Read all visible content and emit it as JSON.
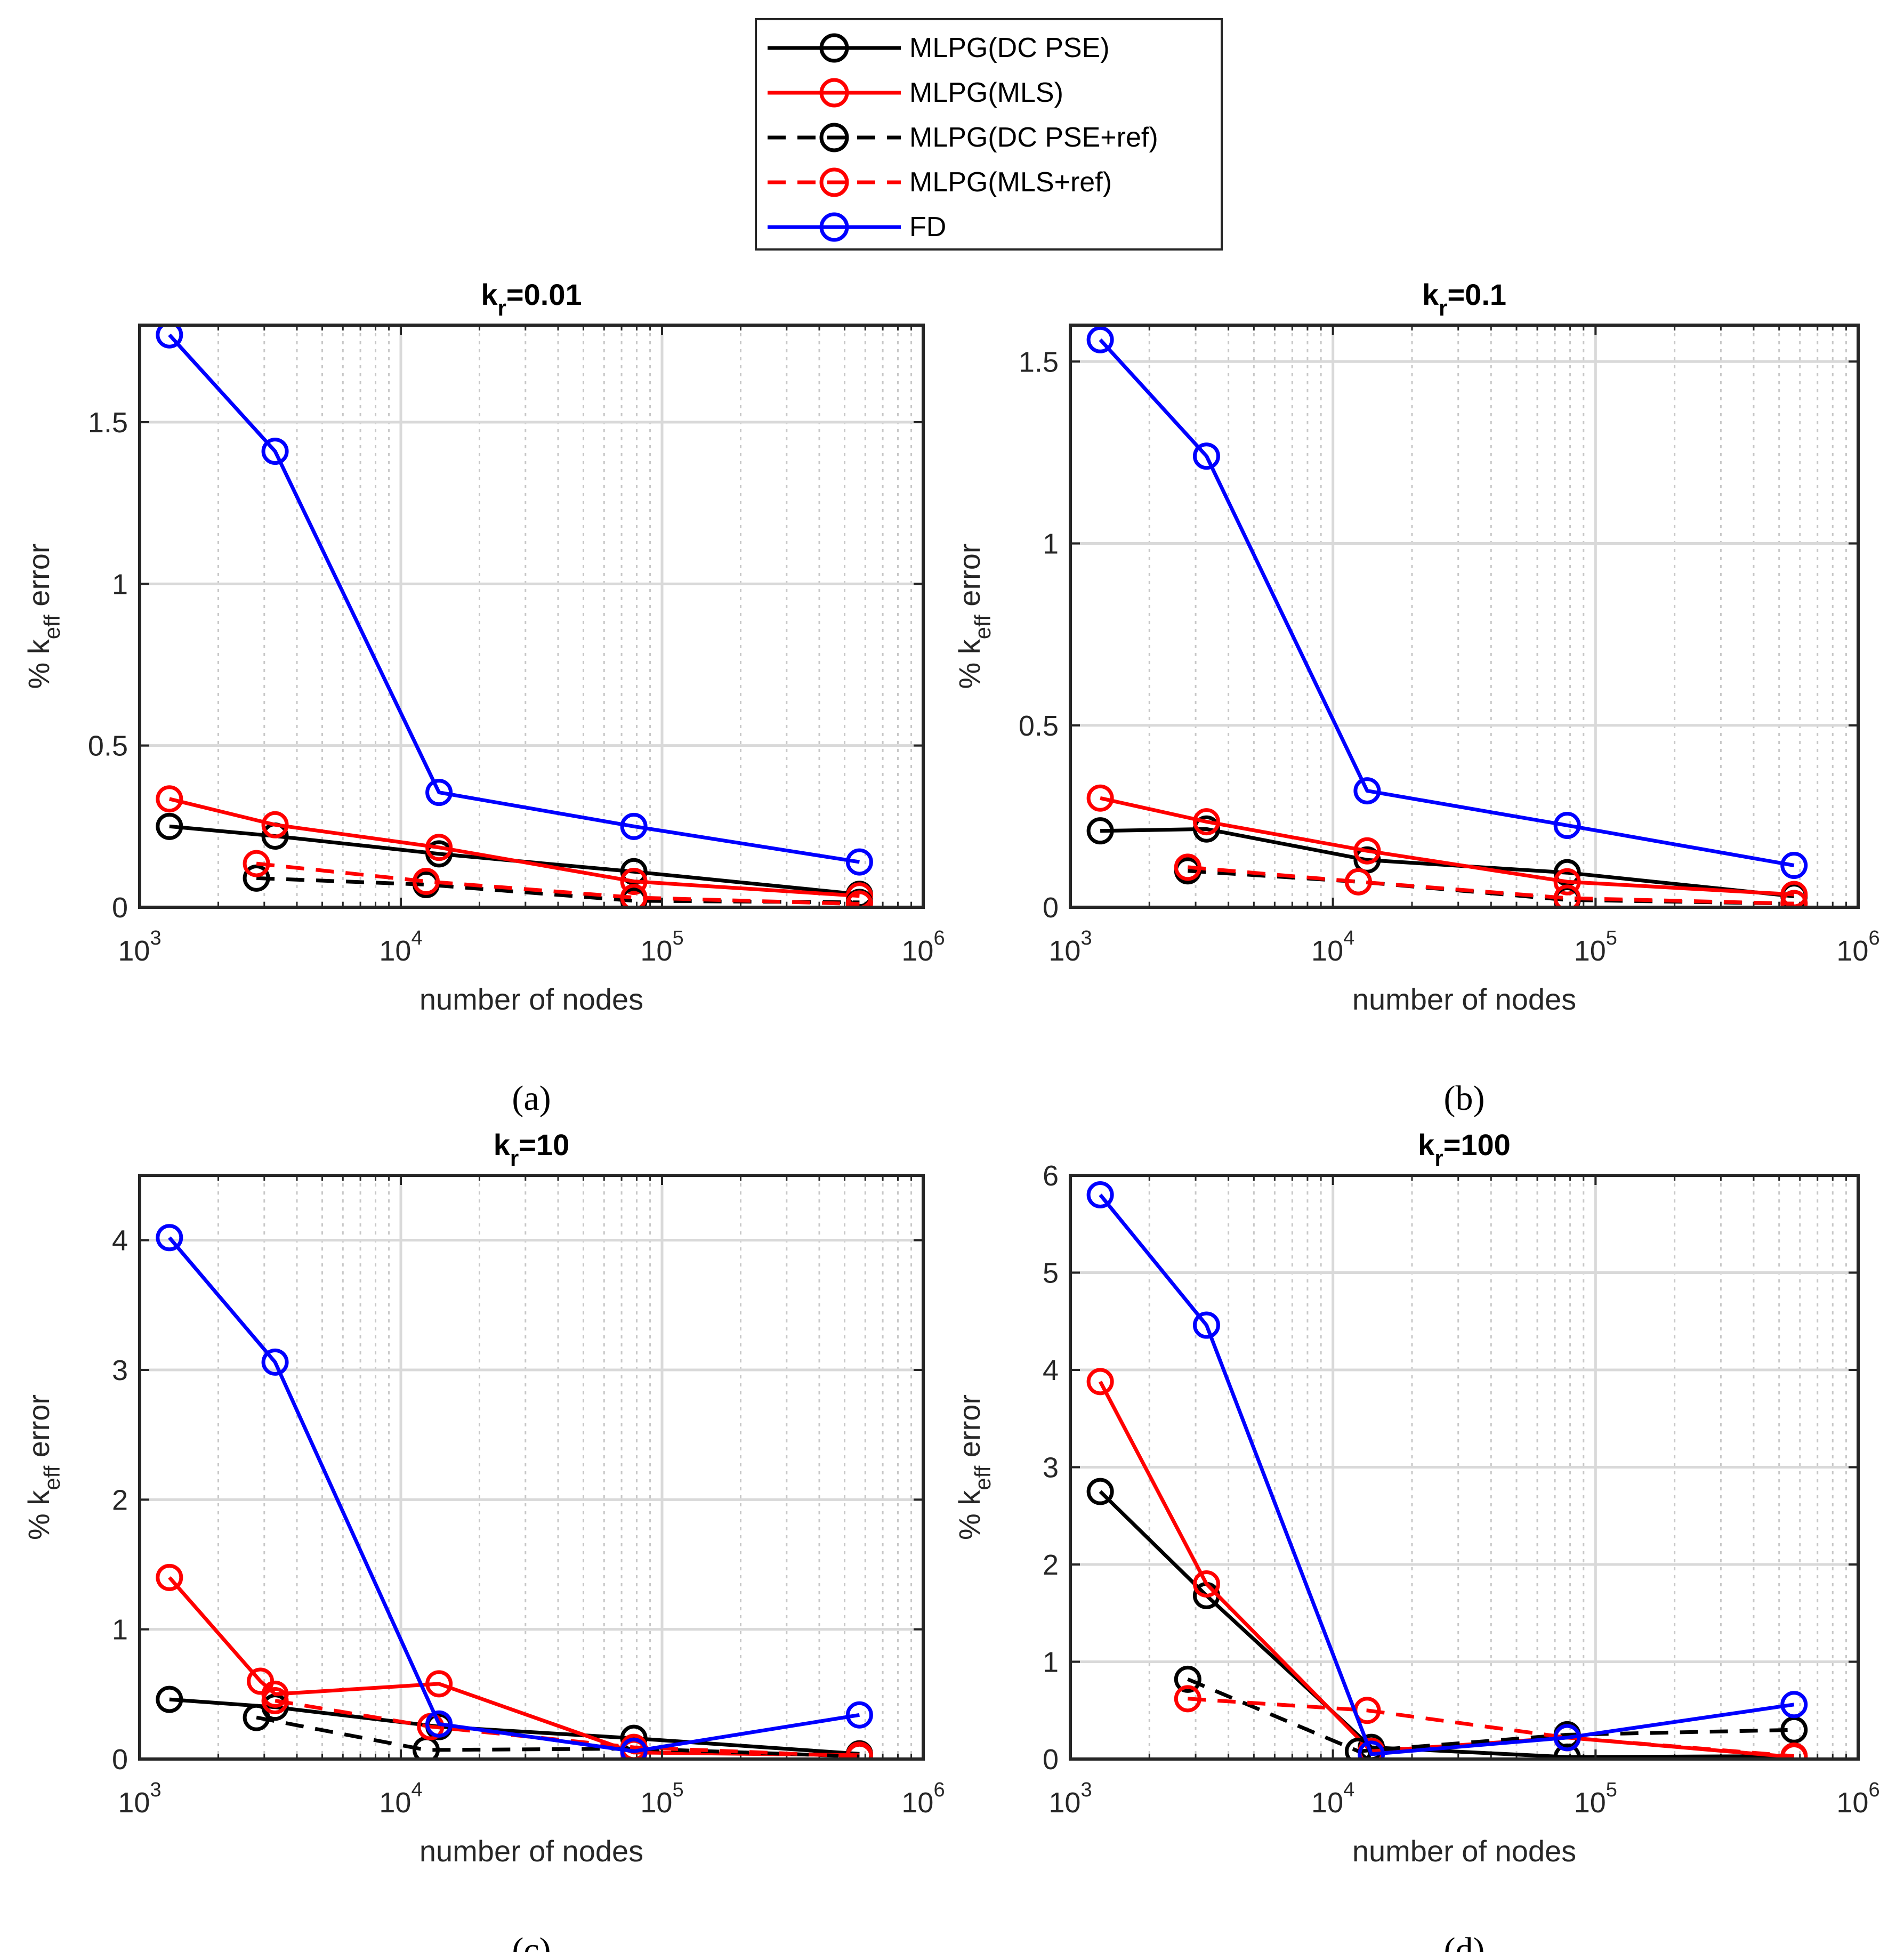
{
  "legend": {
    "entries": [
      {
        "label": "MLPG(DC PSE)",
        "color": "#000000",
        "dash": "solid"
      },
      {
        "label": "MLPG(MLS)",
        "color": "#ff0000",
        "dash": "solid"
      },
      {
        "label": "MLPG(DC PSE+ref)",
        "color": "#000000",
        "dash": "dashed"
      },
      {
        "label": "MLPG(MLS+ref)",
        "color": "#ff0000",
        "dash": "dashed"
      },
      {
        "label": "FD",
        "color": "#0000ff",
        "dash": "solid"
      }
    ]
  },
  "colors": {
    "black": "#000000",
    "red": "#ff0000",
    "blue": "#0000ff",
    "grid": "#d9d9d9",
    "axis": "#262626"
  },
  "chart_data": [
    {
      "type": "line",
      "title_main": "k",
      "title_sub": "r",
      "title_rest": "=0.01",
      "caption": "(a)",
      "xlabel": "number of nodes",
      "ylabel_main": "% k",
      "ylabel_sub": "eff",
      "ylabel_rest": " error",
      "xscale": "log",
      "xlim": [
        1000,
        1000000
      ],
      "ylim": [
        0,
        1.8
      ],
      "xticks": [
        1000,
        10000,
        100000,
        1000000
      ],
      "xtick_labels": [
        {
          "base": "10",
          "exp": "3"
        },
        {
          "base": "10",
          "exp": "4"
        },
        {
          "base": "10",
          "exp": "5"
        },
        {
          "base": "10",
          "exp": "6"
        }
      ],
      "yticks": [
        0,
        0.5,
        1,
        1.5
      ],
      "ytick_labels": [
        "0",
        "0.5",
        "1",
        "1.5"
      ],
      "series": [
        {
          "name": "MLPG(DC PSE)",
          "x": [
            1300,
            3300,
            14000,
            78000,
            570000
          ],
          "y": [
            0.25,
            0.22,
            0.165,
            0.11,
            0.04
          ]
        },
        {
          "name": "MLPG(MLS)",
          "x": [
            1300,
            3300,
            14000,
            78000,
            570000
          ],
          "y": [
            0.335,
            0.255,
            0.185,
            0.08,
            0.035
          ]
        },
        {
          "name": "MLPG(DC PSE+ref)",
          "x": [
            2800,
            12500,
            78000,
            570000
          ],
          "y": [
            0.09,
            0.07,
            0.02,
            0.015
          ]
        },
        {
          "name": "MLPG(MLS+ref)",
          "x": [
            2800,
            12500,
            78000,
            570000
          ],
          "y": [
            0.135,
            0.08,
            0.03,
            0.01
          ]
        },
        {
          "name": "FD",
          "x": [
            1300,
            3300,
            14000,
            78000,
            570000
          ],
          "y": [
            1.77,
            1.41,
            0.355,
            0.25,
            0.14
          ]
        }
      ]
    },
    {
      "type": "line",
      "title_main": "k",
      "title_sub": "r",
      "title_rest": "=0.1",
      "caption": "(b)",
      "xlabel": "number of nodes",
      "ylabel_main": "% k",
      "ylabel_sub": "eff",
      "ylabel_rest": " error",
      "xscale": "log",
      "xlim": [
        1000,
        1000000
      ],
      "ylim": [
        0,
        1.6
      ],
      "xticks": [
        1000,
        10000,
        100000,
        1000000
      ],
      "xtick_labels": [
        {
          "base": "10",
          "exp": "3"
        },
        {
          "base": "10",
          "exp": "4"
        },
        {
          "base": "10",
          "exp": "5"
        },
        {
          "base": "10",
          "exp": "6"
        }
      ],
      "yticks": [
        0,
        0.5,
        1,
        1.5
      ],
      "ytick_labels": [
        "0",
        "0.5",
        "1",
        "1.5"
      ],
      "series": [
        {
          "name": "MLPG(DC PSE)",
          "x": [
            1300,
            3300,
            13500,
            78000,
            570000
          ],
          "y": [
            0.21,
            0.215,
            0.13,
            0.095,
            0.03
          ]
        },
        {
          "name": "MLPG(MLS)",
          "x": [
            1300,
            3300,
            13500,
            78000,
            570000
          ],
          "y": [
            0.3,
            0.235,
            0.155,
            0.07,
            0.035
          ]
        },
        {
          "name": "MLPG(DC PSE+ref)",
          "x": [
            2800,
            12500,
            78000,
            570000
          ],
          "y": [
            0.1,
            0.07,
            0.02,
            0.01
          ]
        },
        {
          "name": "MLPG(MLS+ref)",
          "x": [
            2800,
            12500,
            78000,
            570000
          ],
          "y": [
            0.11,
            0.07,
            0.025,
            0.01
          ]
        },
        {
          "name": "FD",
          "x": [
            1300,
            3300,
            13500,
            78000,
            570000
          ],
          "y": [
            1.56,
            1.24,
            0.32,
            0.225,
            0.115
          ]
        }
      ]
    },
    {
      "type": "line",
      "title_main": "k",
      "title_sub": "r",
      "title_rest": "=10",
      "caption": "(c)",
      "xlabel": "number of nodes",
      "ylabel_main": "% k",
      "ylabel_sub": "eff",
      "ylabel_rest": " error",
      "xscale": "log",
      "xlim": [
        1000,
        1000000
      ],
      "ylim": [
        0,
        4.5
      ],
      "xticks": [
        1000,
        10000,
        100000,
        1000000
      ],
      "xtick_labels": [
        {
          "base": "10",
          "exp": "3"
        },
        {
          "base": "10",
          "exp": "4"
        },
        {
          "base": "10",
          "exp": "5"
        },
        {
          "base": "10",
          "exp": "6"
        }
      ],
      "yticks": [
        0,
        1,
        2,
        3,
        4
      ],
      "ytick_labels": [
        "0",
        "1",
        "2",
        "3",
        "4"
      ],
      "series": [
        {
          "name": "MLPG(DC PSE)",
          "x": [
            1300,
            3300,
            14000,
            78000,
            570000
          ],
          "y": [
            0.46,
            0.4,
            0.25,
            0.16,
            0.04
          ]
        },
        {
          "name": "MLPG(MLS)",
          "x": [
            1300,
            2900,
            3300,
            14000,
            78000,
            570000
          ],
          "y": [
            1.4,
            0.6,
            0.5,
            0.58,
            0.05,
            0.03
          ]
        },
        {
          "name": "MLPG(DC PSE+ref)",
          "x": [
            2800,
            12500,
            78000,
            570000
          ],
          "y": [
            0.32,
            0.07,
            0.08,
            0.02
          ]
        },
        {
          "name": "MLPG(MLS+ref)",
          "x": [
            3300,
            13000,
            78000,
            570000
          ],
          "y": [
            0.45,
            0.25,
            0.09,
            0.02
          ]
        },
        {
          "name": "FD",
          "x": [
            1300,
            3300,
            14000,
            78000,
            570000
          ],
          "y": [
            4.02,
            3.06,
            0.27,
            0.06,
            0.34
          ]
        }
      ]
    },
    {
      "type": "line",
      "title_main": "k",
      "title_sub": "r",
      "title_rest": "=100",
      "caption": "(d)",
      "xlabel": "number of nodes",
      "ylabel_main": "% k",
      "ylabel_sub": "eff",
      "ylabel_rest": " error",
      "xscale": "log",
      "xlim": [
        1000,
        1000000
      ],
      "ylim": [
        0,
        6
      ],
      "xticks": [
        1000,
        10000,
        100000,
        1000000
      ],
      "xtick_labels": [
        {
          "base": "10",
          "exp": "3"
        },
        {
          "base": "10",
          "exp": "4"
        },
        {
          "base": "10",
          "exp": "5"
        },
        {
          "base": "10",
          "exp": "6"
        }
      ],
      "yticks": [
        0,
        1,
        2,
        3,
        4,
        5,
        6
      ],
      "ytick_labels": [
        "0",
        "1",
        "2",
        "3",
        "4",
        "5",
        "6"
      ],
      "series": [
        {
          "name": "MLPG(DC PSE)",
          "x": [
            1300,
            3300,
            14000,
            78000,
            570000
          ],
          "y": [
            2.75,
            1.68,
            0.12,
            0.02,
            0.03
          ]
        },
        {
          "name": "MLPG(MLS)",
          "x": [
            1300,
            3300,
            14000,
            78000,
            570000
          ],
          "y": [
            3.88,
            1.8,
            0.08,
            0.22,
            0.02
          ]
        },
        {
          "name": "MLPG(DC PSE+ref)",
          "x": [
            2800,
            12500,
            78000,
            570000
          ],
          "y": [
            0.82,
            0.08,
            0.25,
            0.3
          ]
        },
        {
          "name": "MLPG(MLS+ref)",
          "x": [
            2800,
            13500,
            78000,
            570000
          ],
          "y": [
            0.62,
            0.5,
            0.22,
            0.03
          ]
        },
        {
          "name": "FD",
          "x": [
            1300,
            3300,
            14000,
            78000,
            570000
          ],
          "y": [
            5.8,
            4.46,
            0.05,
            0.22,
            0.56
          ]
        }
      ]
    }
  ]
}
